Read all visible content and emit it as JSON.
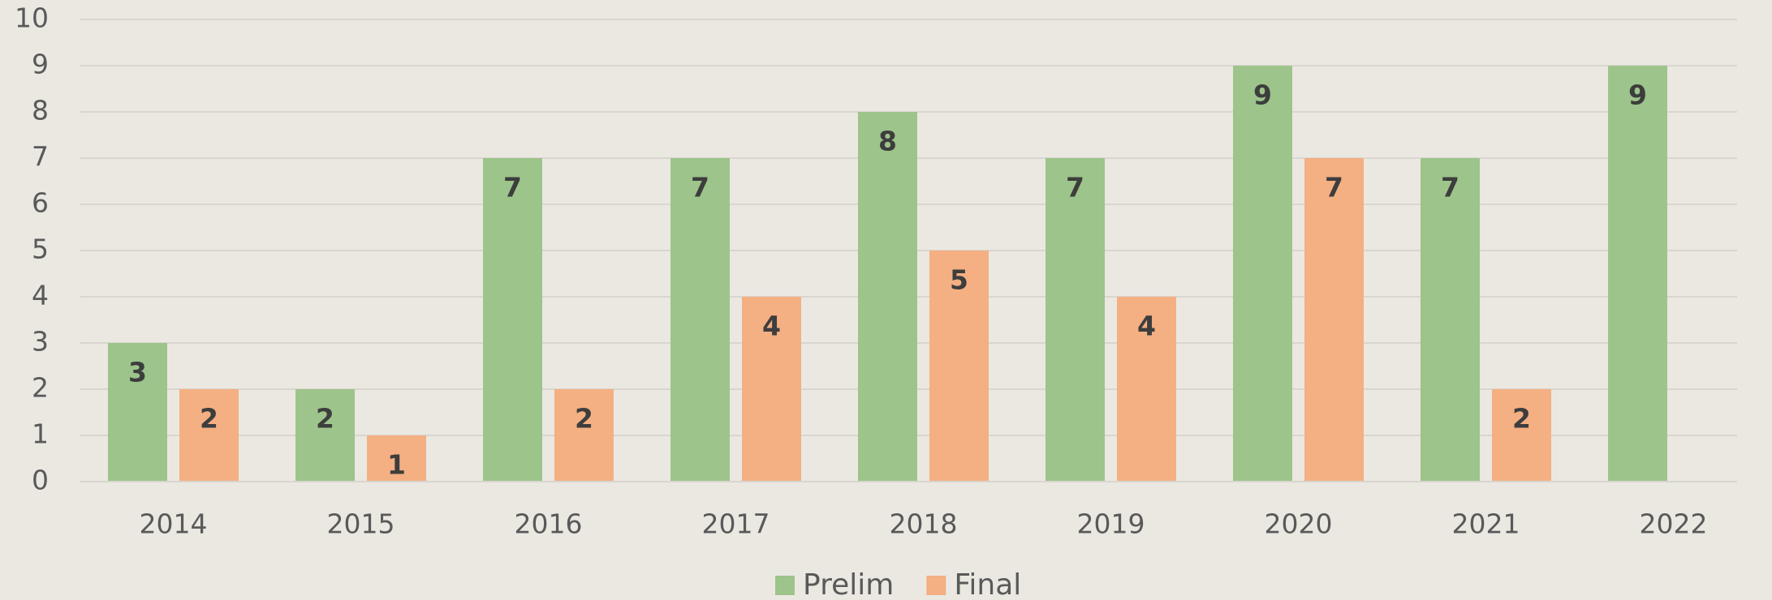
{
  "chart_data": {
    "type": "bar",
    "categories": [
      "2014",
      "2015",
      "2016",
      "2017",
      "2018",
      "2019",
      "2020",
      "2021",
      "2022"
    ],
    "series": [
      {
        "name": "Prelim",
        "color": "#9dc48a",
        "values": [
          3,
          2,
          7,
          7,
          8,
          7,
          9,
          7,
          9
        ]
      },
      {
        "name": "Final",
        "color": "#f4af82",
        "values": [
          2,
          1,
          2,
          4,
          5,
          4,
          7,
          2,
          null
        ]
      }
    ],
    "ylim": [
      0,
      10
    ],
    "yticks": [
      0,
      1,
      2,
      3,
      4,
      5,
      6,
      7,
      8,
      9,
      10
    ],
    "grid": true,
    "legend": "bottom"
  }
}
